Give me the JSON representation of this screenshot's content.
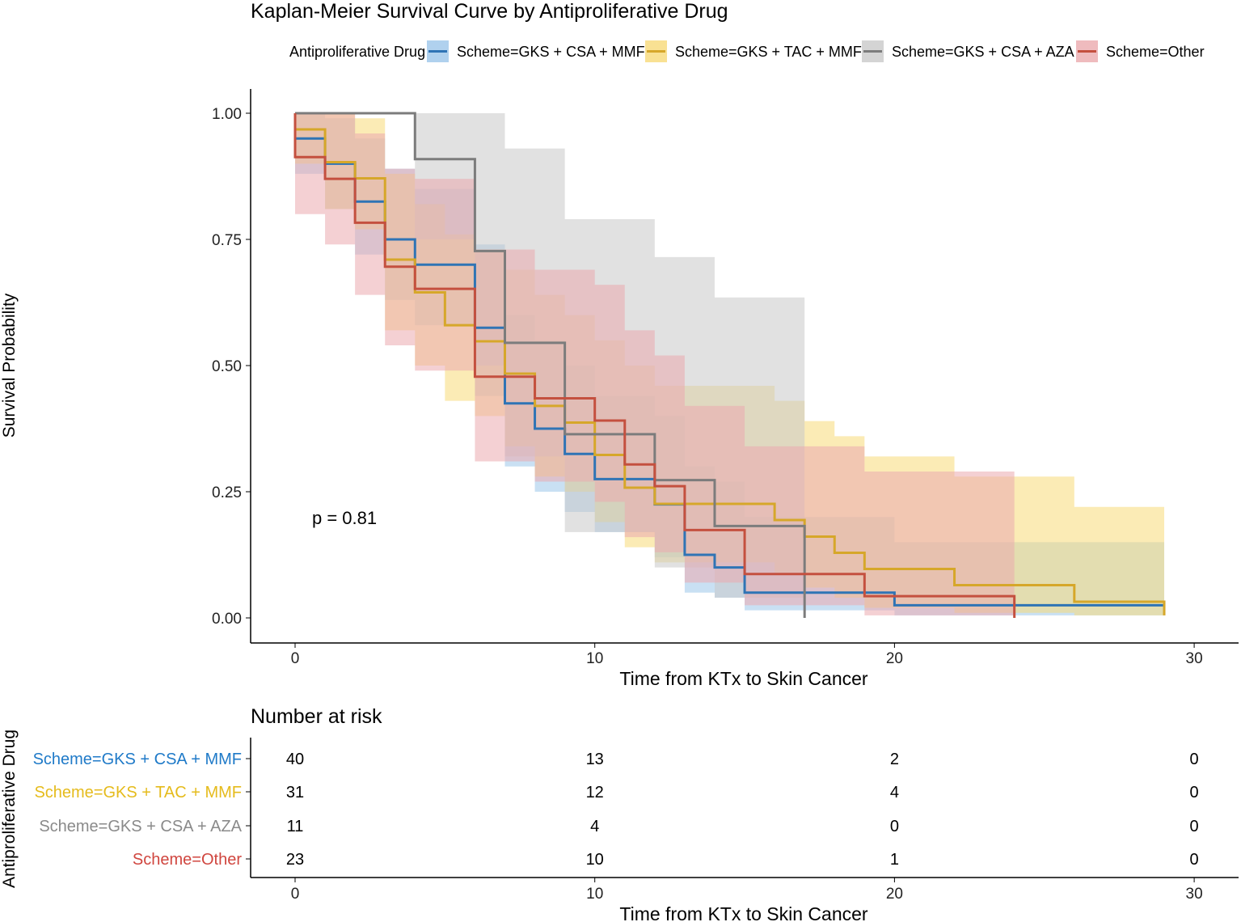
{
  "chart_data": {
    "type": "line",
    "title": "Kaplan-Meier Survival Curve by Antiproliferative Drug",
    "xlabel": "Time from KTx to Skin Cancer",
    "ylabel": "Survival Probability",
    "xlim": [
      0,
      30
    ],
    "ylim": [
      0,
      1
    ],
    "x_ticks": [
      "0",
      "10",
      "20",
      "30"
    ],
    "y_ticks": [
      "0.00",
      "0.25",
      "0.50",
      "0.75",
      "1.00"
    ],
    "grid": false,
    "legend_title": "Antiproliferative Drug",
    "legend_position": "top",
    "annotation": "p = 0.81",
    "series": [
      {
        "name": "Scheme=GKS + CSA + MMF",
        "color": "#2F74B5",
        "band": "#9CC6EA",
        "t": [
          0,
          1,
          2,
          3,
          4,
          6,
          7,
          8,
          9,
          10,
          12,
          13,
          14,
          15,
          20,
          29
        ],
        "s": [
          0.95,
          0.9,
          0.825,
          0.75,
          0.7,
          0.575,
          0.425,
          0.375,
          0.325,
          0.275,
          0.225,
          0.125,
          0.1,
          0.05,
          0.025,
          0.025
        ],
        "lo": [
          0.88,
          0.81,
          0.72,
          0.63,
          0.58,
          0.44,
          0.3,
          0.25,
          0.21,
          0.17,
          0.12,
          0.05,
          0.04,
          0.015,
          0.005,
          0.005
        ],
        "hi": [
          1,
          0.99,
          0.95,
          0.89,
          0.85,
          0.74,
          0.6,
          0.55,
          0.5,
          0.44,
          0.4,
          0.3,
          0.27,
          0.2,
          0.15,
          0.15
        ]
      },
      {
        "name": "Scheme=GKS + TAC + MMF",
        "color": "#D6A72A",
        "band": "#F7DA78",
        "t": [
          0,
          1,
          2,
          3,
          4,
          5,
          6,
          7,
          8,
          9,
          10,
          11,
          12,
          16,
          17,
          18,
          19,
          22,
          26,
          29
        ],
        "s": [
          0.968,
          0.903,
          0.871,
          0.71,
          0.645,
          0.58,
          0.548,
          0.484,
          0.42,
          0.387,
          0.323,
          0.258,
          0.226,
          0.194,
          0.161,
          0.129,
          0.097,
          0.065,
          0.032,
          0.005
        ],
        "lo": [
          0.9,
          0.81,
          0.77,
          0.57,
          0.5,
          0.43,
          0.4,
          0.34,
          0.28,
          0.25,
          0.19,
          0.14,
          0.11,
          0.09,
          0.06,
          0.04,
          0.02,
          0.01,
          0.005,
          0.005
        ],
        "hi": [
          1,
          1,
          0.99,
          0.88,
          0.82,
          0.76,
          0.73,
          0.69,
          0.64,
          0.6,
          0.55,
          0.5,
          0.46,
          0.43,
          0.39,
          0.36,
          0.32,
          0.28,
          0.22,
          0.22
        ]
      },
      {
        "name": "Scheme=GKS + CSA + AZA",
        "color": "#7C7C7C",
        "band": "#C9C9C9",
        "t": [
          0,
          4,
          6,
          7,
          9,
          12,
          14,
          17
        ],
        "s": [
          1,
          0.909,
          0.727,
          0.545,
          0.364,
          0.273,
          0.182,
          0
        ],
        "lo": [
          1,
          0.75,
          0.5,
          0.32,
          0.17,
          0.1,
          0.04,
          0
        ],
        "hi": [
          1,
          1,
          1,
          0.93,
          0.79,
          0.715,
          0.635,
          0
        ]
      },
      {
        "name": "Scheme=Other",
        "color": "#C4503F",
        "band": "#EBAAAE",
        "t": [
          0,
          1,
          2,
          3,
          4,
          6,
          8,
          10,
          11,
          12,
          13,
          15,
          19,
          24
        ],
        "s": [
          0.913,
          0.87,
          0.783,
          0.696,
          0.652,
          0.478,
          0.435,
          0.391,
          0.304,
          0.261,
          0.174,
          0.087,
          0.043,
          0
        ],
        "lo": [
          0.8,
          0.74,
          0.64,
          0.54,
          0.49,
          0.31,
          0.27,
          0.23,
          0.16,
          0.13,
          0.07,
          0.025,
          0.005,
          0
        ],
        "hi": [
          1,
          1,
          0.96,
          0.89,
          0.87,
          0.73,
          0.69,
          0.66,
          0.57,
          0.52,
          0.42,
          0.34,
          0.29,
          0
        ]
      }
    ],
    "risk_table": {
      "title": "Number at risk",
      "ylabel": "Antiproliferative Drug",
      "xlabel": "Time from KTx to Skin Cancer",
      "times": [
        "0",
        "10",
        "20",
        "30"
      ],
      "rows": [
        {
          "label": "Scheme=GKS + CSA + MMF",
          "color": "#1F7AC8",
          "values": [
            "40",
            "13",
            "2",
            "0"
          ]
        },
        {
          "label": "Scheme=GKS + TAC + MMF",
          "color": "#E5BB1C",
          "values": [
            "31",
            "12",
            "4",
            "0"
          ]
        },
        {
          "label": "Scheme=GKS + CSA + AZA",
          "color": "#8A8A8A",
          "values": [
            "11",
            "4",
            "0",
            "0"
          ]
        },
        {
          "label": "Scheme=Other",
          "color": "#D0463F",
          "values": [
            "23",
            "10",
            "1",
            "0"
          ]
        }
      ]
    }
  }
}
